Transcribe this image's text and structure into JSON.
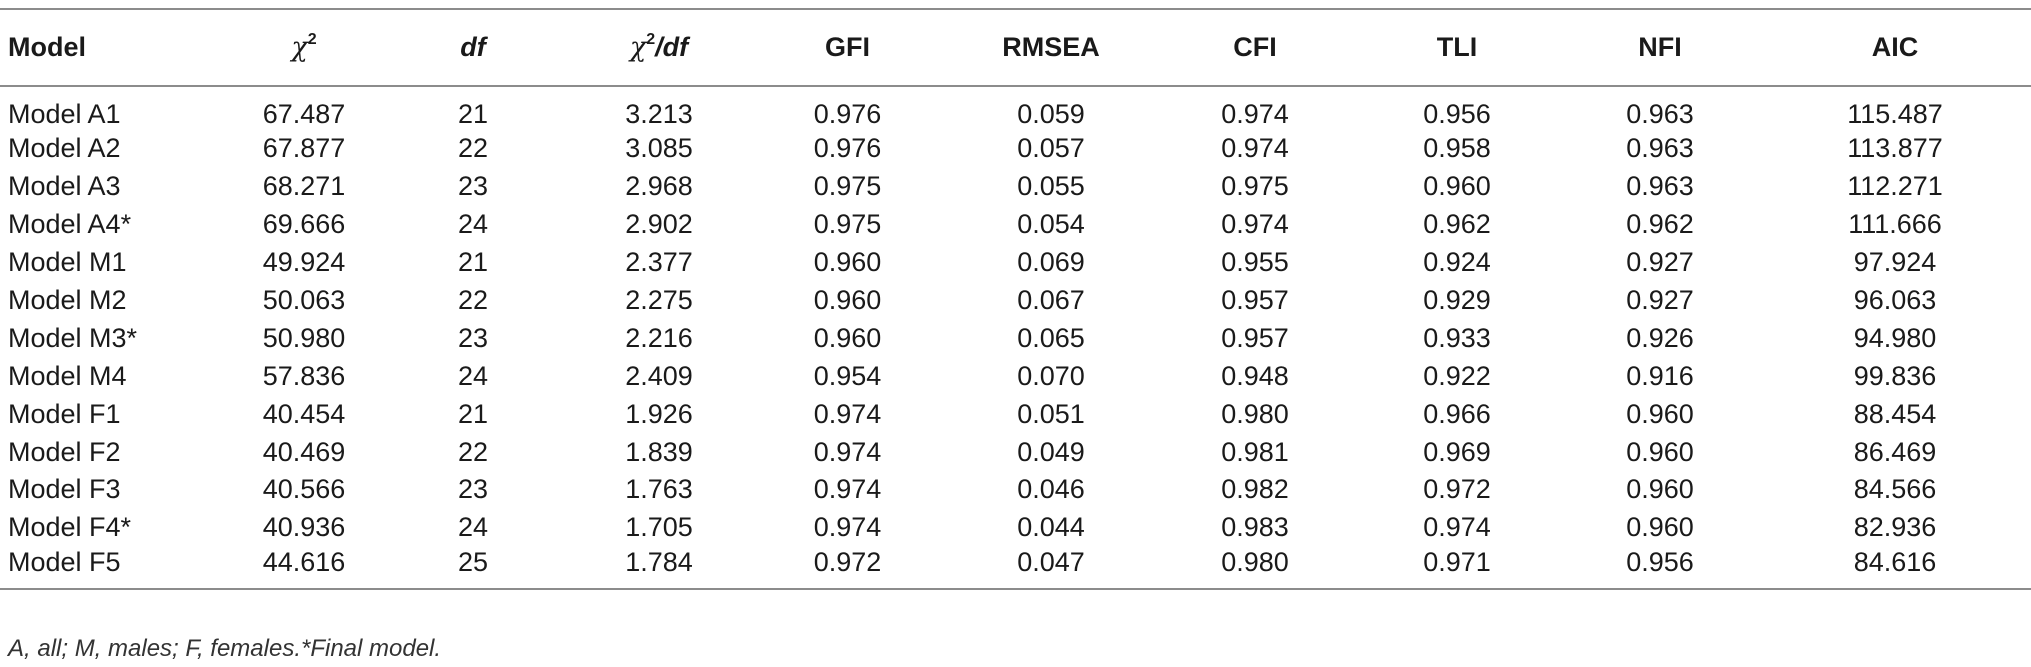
{
  "table": {
    "headers": {
      "model": "Model",
      "chi2_symbol": "χ",
      "chi2_sup": "2",
      "df": "df",
      "chi2df_symbol": "χ",
      "chi2df_sup": "2",
      "chi2df_tail": "/df",
      "gfi": "GFI",
      "rmsea": "RMSEA",
      "cfi": "CFI",
      "tli": "TLI",
      "nfi": "NFI",
      "aic": "AIC"
    },
    "rows": [
      [
        "Model A1",
        "67.487",
        "21",
        "3.213",
        "0.976",
        "0.059",
        "0.974",
        "0.956",
        "0.963",
        "115.487"
      ],
      [
        "Model A2",
        "67.877",
        "22",
        "3.085",
        "0.976",
        "0.057",
        "0.974",
        "0.958",
        "0.963",
        "113.877"
      ],
      [
        "Model A3",
        "68.271",
        "23",
        "2.968",
        "0.975",
        "0.055",
        "0.975",
        "0.960",
        "0.963",
        "112.271"
      ],
      [
        "Model A4*",
        "69.666",
        "24",
        "2.902",
        "0.975",
        "0.054",
        "0.974",
        "0.962",
        "0.962",
        "111.666"
      ],
      [
        "Model M1",
        "49.924",
        "21",
        "2.377",
        "0.960",
        "0.069",
        "0.955",
        "0.924",
        "0.927",
        "97.924"
      ],
      [
        "Model M2",
        "50.063",
        "22",
        "2.275",
        "0.960",
        "0.067",
        "0.957",
        "0.929",
        "0.927",
        "96.063"
      ],
      [
        "Model M3*",
        "50.980",
        "23",
        "2.216",
        "0.960",
        "0.065",
        "0.957",
        "0.933",
        "0.926",
        "94.980"
      ],
      [
        "Model M4",
        "57.836",
        "24",
        "2.409",
        "0.954",
        "0.070",
        "0.948",
        "0.922",
        "0.916",
        "99.836"
      ],
      [
        "Model F1",
        "40.454",
        "21",
        "1.926",
        "0.974",
        "0.051",
        "0.980",
        "0.966",
        "0.960",
        "88.454"
      ],
      [
        "Model F2",
        "40.469",
        "22",
        "1.839",
        "0.974",
        "0.049",
        "0.981",
        "0.969",
        "0.960",
        "86.469"
      ],
      [
        "Model F3",
        "40.566",
        "23",
        "1.763",
        "0.974",
        "0.046",
        "0.982",
        "0.972",
        "0.960",
        "84.566"
      ],
      [
        "Model F4*",
        "40.936",
        "24",
        "1.705",
        "0.974",
        "0.044",
        "0.983",
        "0.974",
        "0.960",
        "82.936"
      ],
      [
        "Model F5",
        "44.616",
        "25",
        "1.784",
        "0.972",
        "0.047",
        "0.980",
        "0.971",
        "0.956",
        "84.616"
      ]
    ]
  },
  "footnote": "A, all; M, males; F, females.*Final model."
}
